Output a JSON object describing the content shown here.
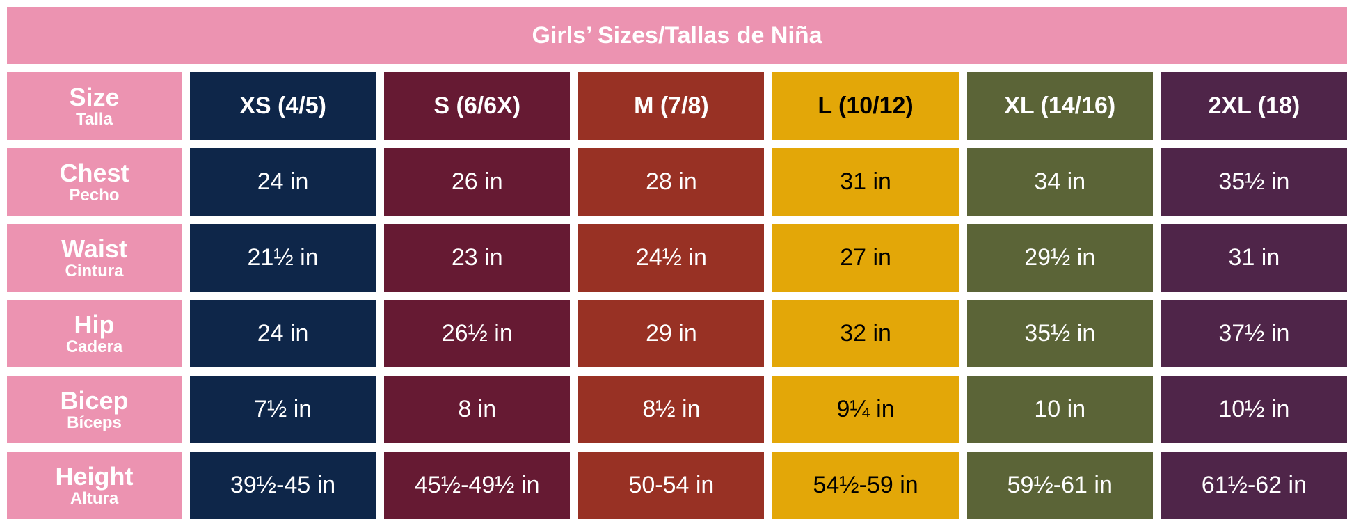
{
  "title": "Girls’ Sizes/Tallas de Niña",
  "header": {
    "label": "Size",
    "sublabel": "Talla"
  },
  "label_color": "#ec93b1",
  "columns": [
    {
      "label": "XS (4/5)",
      "color": "#0e2649",
      "text_color": "#ffffff"
    },
    {
      "label": "S (6/6X)",
      "color": "#661a33",
      "text_color": "#ffffff"
    },
    {
      "label": "M (7/8)",
      "color": "#983124",
      "text_color": "#ffffff"
    },
    {
      "label": "L (10/12)",
      "color": "#e3a708",
      "text_color": "#000000"
    },
    {
      "label": "XL (14/16)",
      "color": "#5b6437",
      "text_color": "#ffffff"
    },
    {
      "label": "2XL (18)",
      "color": "#4f2549",
      "text_color": "#ffffff"
    }
  ],
  "rows": [
    {
      "label": "Chest",
      "sublabel": "Pecho",
      "cells": [
        "24 in",
        "26 in",
        "28 in",
        "31 in",
        "34 in",
        "35½ in"
      ]
    },
    {
      "label": "Waist",
      "sublabel": "Cintura",
      "cells": [
        "21½ in",
        "23 in",
        "24½ in",
        "27 in",
        "29½ in",
        "31 in"
      ]
    },
    {
      "label": "Hip",
      "sublabel": "Cadera",
      "cells": [
        "24 in",
        "26½ in",
        "29 in",
        "32 in",
        "35½ in",
        "37½ in"
      ]
    },
    {
      "label": "Bicep",
      "sublabel": "Bíceps",
      "cells": [
        "7½ in",
        "8 in",
        "8½ in",
        "9¼ in",
        "10 in",
        "10½ in"
      ]
    },
    {
      "label": "Height",
      "sublabel": "Altura",
      "cells": [
        "39½-45 in",
        "45½-49½ in",
        "50-54 in",
        "54½-59 in",
        "59½-61 in",
        "61½-62 in"
      ]
    }
  ]
}
